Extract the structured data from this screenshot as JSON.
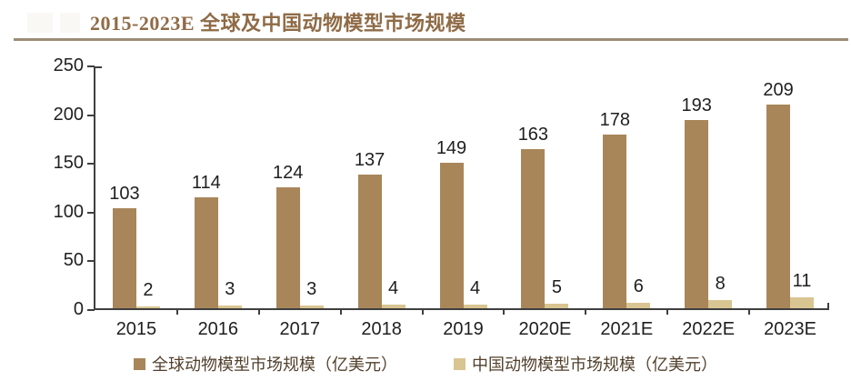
{
  "figure": {
    "title": "2015-2023E 全球及中国动物模型市场规模"
  },
  "colors": {
    "title": "#8F6B46",
    "title_rule": "#9C8B76",
    "axis": "#3F3F3F",
    "label_text": "#1F1F1F",
    "legend_text": "#52402C",
    "global_bar": "#A8865A",
    "china_bar": "#D9C592"
  },
  "chart_data": {
    "type": "bar",
    "title": "2015-2023E 全球及中国动物模型市场规模",
    "categories": [
      "2015",
      "2016",
      "2017",
      "2018",
      "2019",
      "2020E",
      "2021E",
      "2022E",
      "2023E"
    ],
    "series": [
      {
        "name": "全球动物模型市场规模（亿美元）",
        "color": "#A8865A",
        "values": [
          103,
          114,
          124,
          137,
          149,
          163,
          178,
          193,
          209
        ]
      },
      {
        "name": "中国动物模型市场规模（亿美元）",
        "color": "#D9C592",
        "values": [
          2,
          3,
          3,
          4,
          4,
          5,
          6,
          8,
          11
        ]
      }
    ],
    "xlabel": "",
    "ylabel": "",
    "ylim": [
      0,
      250
    ],
    "yticks": [
      0,
      50,
      100,
      150,
      200,
      250
    ],
    "grid": false,
    "legend_position": "bottom",
    "data_labels": true
  }
}
